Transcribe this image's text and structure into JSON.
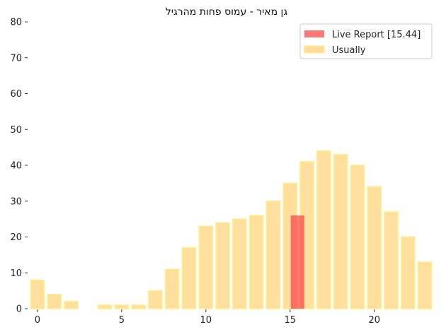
{
  "chart_data": {
    "type": "bar",
    "title": "גן מאיר - עמוס פחות מהרגיל",
    "xlabel": "",
    "ylabel": "",
    "xlim": [
      -0.5,
      23.5
    ],
    "ylim": [
      0,
      80
    ],
    "x_ticks": [
      0,
      5,
      10,
      15,
      20
    ],
    "y_ticks": [
      0,
      10,
      20,
      30,
      40,
      50,
      60,
      70,
      80
    ],
    "grid": false,
    "legend_position": "top-right",
    "series": [
      {
        "name": "Usually",
        "color": "#FFDD99",
        "x": [
          0,
          1,
          2,
          3,
          4,
          5,
          6,
          7,
          8,
          9,
          10,
          11,
          12,
          13,
          14,
          15,
          16,
          17,
          18,
          19,
          20,
          21,
          22,
          23
        ],
        "values": [
          8,
          4,
          2,
          0,
          1,
          1,
          1,
          5,
          11,
          17,
          23,
          24,
          25,
          26,
          30,
          35,
          41,
          44,
          43,
          40,
          34,
          27,
          20,
          13
        ]
      },
      {
        "name": "Live Report [15.44]",
        "color": "#FF4A4A",
        "x": [
          15.44
        ],
        "values": [
          26
        ]
      }
    ]
  }
}
